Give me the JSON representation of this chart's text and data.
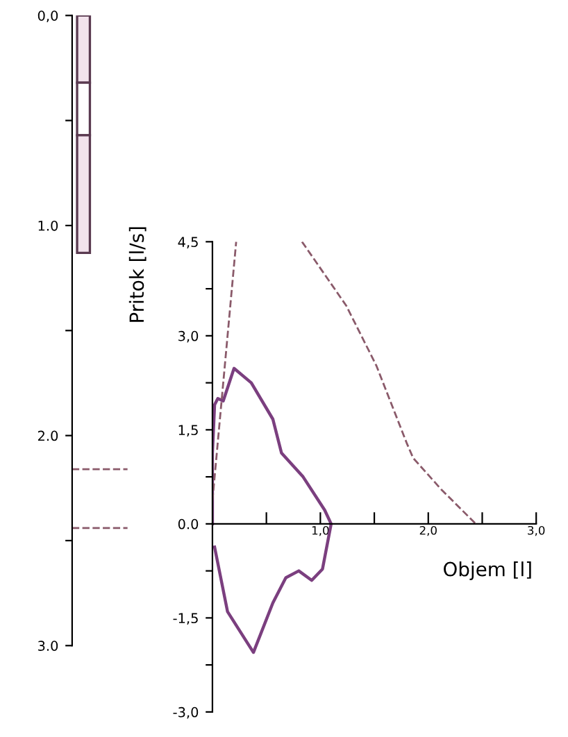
{
  "chart_data": [
    {
      "type": "bar",
      "stacked": true,
      "categories": [
        null
      ],
      "ylim": [
        3.0,
        0.0
      ],
      "yticks": [
        {
          "value": 0.0,
          "label": "0,0"
        },
        {
          "value": 0.5,
          "label": null
        },
        {
          "value": 1.0,
          "label": "1.0"
        },
        {
          "value": 1.5,
          "label": null
        },
        {
          "value": 2.0,
          "label": "2.0"
        },
        {
          "value": 2.5,
          "label": null
        },
        {
          "value": 3.0,
          "label": "3.0"
        }
      ],
      "grid": false,
      "legend": false,
      "series": [
        {
          "color": "#f2e2ec",
          "values": [
            0.32
          ]
        },
        {
          "color": "#ffffff",
          "values": [
            0.25
          ]
        },
        {
          "color": "#f2e2ec",
          "values": [
            0.56
          ]
        }
      ],
      "ref_lines": [
        {
          "axis": "y",
          "value": 2.16,
          "color": "#8a5a6a",
          "line_style": "dashed"
        },
        {
          "axis": "y",
          "value": 2.44,
          "color": "#8a5a6a",
          "line_style": "dashed"
        }
      ]
    },
    {
      "type": "line",
      "xlabel": "Objem [l]",
      "ylabel": "Pritok [l/s]",
      "xlim": [
        0.0,
        3.0
      ],
      "ylim": [
        -3.0,
        4.5
      ],
      "xticks": [
        {
          "value": 0.5,
          "label": null
        },
        {
          "value": 1.0,
          "label": "1,0"
        },
        {
          "value": 1.5,
          "label": null
        },
        {
          "value": 2.0,
          "label": "2,0"
        },
        {
          "value": 2.5,
          "label": null
        },
        {
          "value": 3.0,
          "label": "3,0"
        }
      ],
      "yticks": [
        {
          "value": -3.0,
          "label": "-3,0"
        },
        {
          "value": -2.25,
          "label": null
        },
        {
          "value": -1.5,
          "label": "-1,5"
        },
        {
          "value": -0.75,
          "label": null
        },
        {
          "value": 0.0,
          "label": "0.0"
        },
        {
          "value": 0.75,
          "label": null
        },
        {
          "value": 1.5,
          "label": "1,5"
        },
        {
          "value": 2.25,
          "label": null
        },
        {
          "value": 3.0,
          "label": "3,0"
        },
        {
          "value": 3.75,
          "label": null
        },
        {
          "value": 4.5,
          "label": "4,5"
        }
      ],
      "grid": false,
      "legend": false,
      "marker": "none",
      "series": [
        {
          "color": "#7b3f7f",
          "line_style": "solid",
          "x": [
            0.0,
            0.0,
            0.02,
            0.05,
            0.1,
            0.2,
            0.36,
            0.56,
            0.64,
            0.84,
            1.04,
            1.1,
            1.02,
            0.92,
            0.8,
            0.68,
            0.56,
            0.38,
            0.14,
            0.02
          ],
          "values": [
            0.0,
            1.13,
            1.9,
            2.0,
            1.96,
            2.48,
            2.25,
            1.67,
            1.13,
            0.75,
            0.22,
            0.0,
            -0.72,
            -0.9,
            -0.75,
            -0.86,
            -1.26,
            -2.05,
            -1.4,
            -0.37
          ]
        },
        {
          "color": "#8a5a6a",
          "line_style": "dashed",
          "x": [
            0.0,
            0.22
          ],
          "values": [
            0.37,
            4.5
          ]
        },
        {
          "color": "#8a5a6a",
          "line_style": "dashed",
          "x": [
            0.83,
            1.24,
            1.52,
            1.8,
            1.86,
            2.12,
            2.44
          ],
          "values": [
            4.5,
            3.48,
            2.52,
            1.29,
            1.05,
            0.55,
            0.0
          ]
        }
      ]
    }
  ]
}
